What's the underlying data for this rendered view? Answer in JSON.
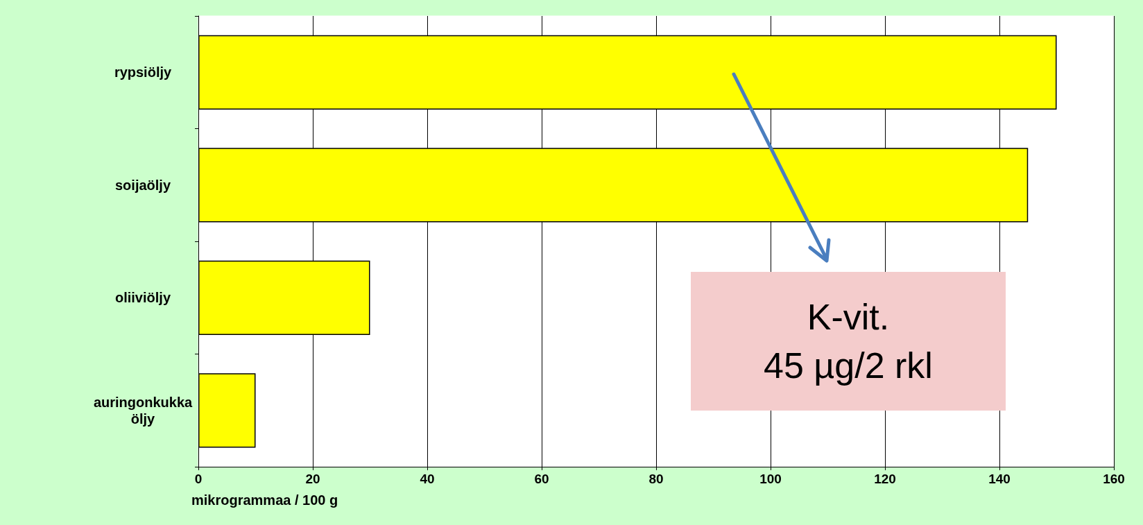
{
  "chart_data": {
    "type": "bar",
    "orientation": "horizontal",
    "categories": [
      "rypsiöljy",
      "soijaöljy",
      "oliiviöljy",
      "auringonkukka\nöljy"
    ],
    "values": [
      150,
      145,
      30,
      10
    ],
    "color": "#ffff00",
    "xlabel": "mikrogrammaa / 100 g",
    "xlim": [
      0,
      160
    ],
    "xticks": [
      0,
      20,
      40,
      60,
      80,
      100,
      120,
      140,
      160
    ],
    "grid": "x",
    "annotations": [
      "K-vit.\n45 µg/2 rkl"
    ]
  }
}
